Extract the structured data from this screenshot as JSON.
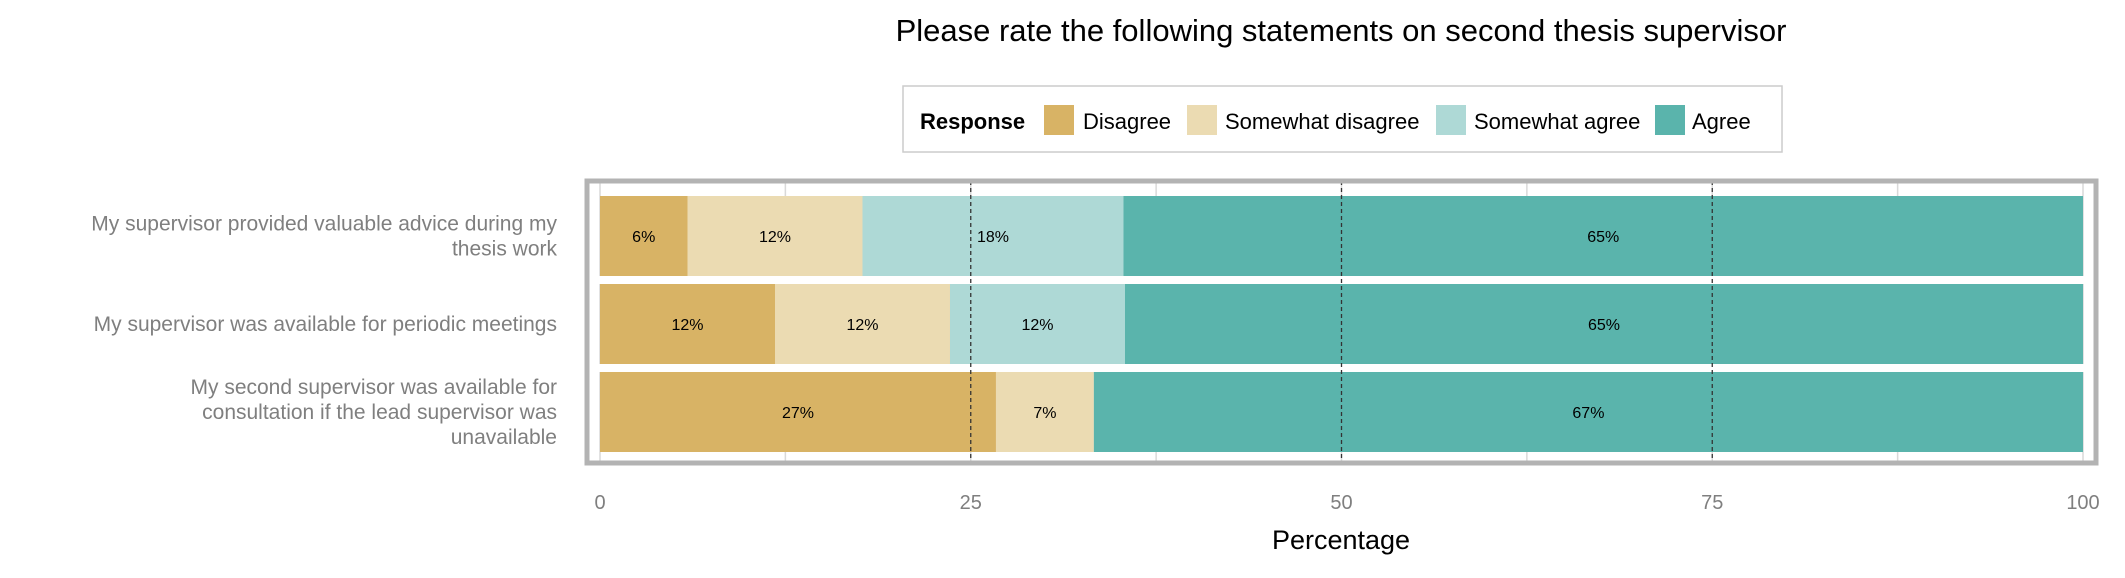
{
  "chart_data": {
    "type": "bar",
    "orientation": "horizontal",
    "stacked": true,
    "title": "Please rate the following statements on second thesis supervisor",
    "xlabel": "Percentage",
    "ylabel": "",
    "xlim": [
      0,
      100
    ],
    "xticks": [
      0,
      25,
      50,
      75,
      100
    ],
    "reference_lines": [
      25,
      50,
      75
    ],
    "legend": {
      "title": "Response",
      "position": "top"
    },
    "categories": [
      [
        "My supervisor provided valuable advice during my",
        "thesis work"
      ],
      [
        "My supervisor was available for periodic meetings"
      ],
      [
        "My second supervisor was available for",
        "consultation if the lead supervisor was",
        "unavailable"
      ]
    ],
    "series": [
      {
        "name": "Disagree",
        "color": "#d8b365",
        "values": [
          5.9,
          11.8,
          26.7
        ],
        "labels": [
          "6%",
          "12%",
          "27%"
        ]
      },
      {
        "name": "Somewhat disagree",
        "color": "#ebdbb2",
        "values": [
          11.8,
          11.8,
          6.6
        ],
        "labels": [
          "12%",
          "12%",
          "7%"
        ]
      },
      {
        "name": "Somewhat agree",
        "color": "#aed9d6",
        "values": [
          17.6,
          11.8,
          0
        ],
        "labels": [
          "18%",
          "12%",
          ""
        ]
      },
      {
        "name": "Agree",
        "color": "#5ab4ac",
        "values": [
          64.7,
          64.6,
          66.7
        ],
        "labels": [
          "65%",
          "65%",
          "67%"
        ]
      }
    ],
    "grid": true,
    "colors": {
      "panel_border": "#b3b3b3",
      "grid": "#d9d9d9",
      "reference_line": "#333333"
    }
  }
}
